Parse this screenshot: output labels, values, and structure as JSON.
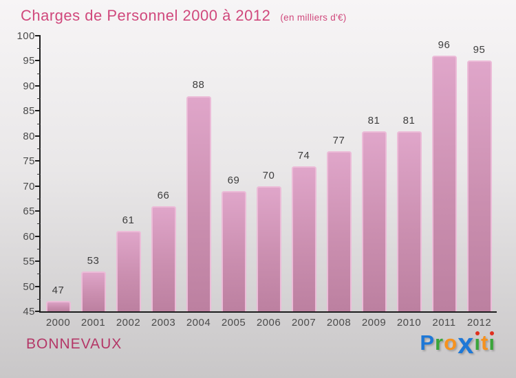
{
  "header": {
    "title": "Charges de Personnel 2000 à 2012",
    "subtitle": "(en milliers d'€)"
  },
  "chart_data": {
    "type": "bar",
    "title": "Charges de Personnel 2000 à 2012",
    "subtitle": "(en milliers d'€)",
    "categories": [
      "2000",
      "2001",
      "2002",
      "2003",
      "2004",
      "2005",
      "2006",
      "2007",
      "2008",
      "2009",
      "2010",
      "2011",
      "2012"
    ],
    "values": [
      47,
      53,
      61,
      66,
      88,
      69,
      70,
      74,
      77,
      81,
      81,
      96,
      95
    ],
    "xlabel": "",
    "ylabel": "",
    "ylim": [
      45,
      100
    ],
    "ytick_step": 5,
    "yminor_step": 2.5,
    "grid": false,
    "legend": false,
    "bar_color_top": "#e0a6ca",
    "bar_color_bottom": "#bc80a0",
    "bar_edge_color": "#ecbcd8",
    "axis_color": "#1c1c1c",
    "value_label_color": "#3d3d3d",
    "tick_label_color": "#4a4a4a"
  },
  "footer": {
    "municipality": "BONNEVAUX",
    "logo_name": "Proxiti",
    "logo_letters": [
      {
        "ch": "P",
        "color": "#1e78d7"
      },
      {
        "ch": "r",
        "color": "#3aa53a"
      },
      {
        "ch": "o",
        "color": "#f6921e"
      },
      {
        "ch": "x",
        "color": "#1e78d7",
        "big": true
      },
      {
        "ch": "i",
        "color": "#3aa53a",
        "dot": "#e0301e"
      },
      {
        "ch": "t",
        "color": "#f6921e"
      },
      {
        "ch": "i",
        "color": "#3aa53a",
        "dot": "#e0301e"
      }
    ]
  }
}
